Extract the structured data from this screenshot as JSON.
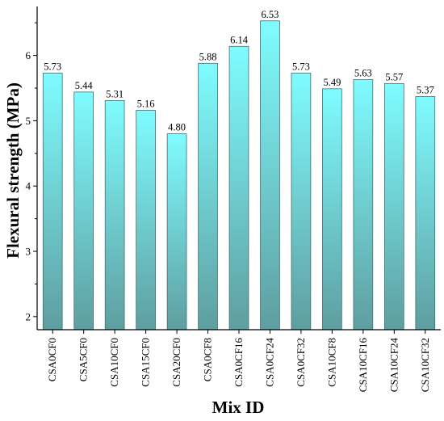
{
  "chart_data": {
    "type": "bar",
    "title": "",
    "xlabel": "Mix ID",
    "ylabel": "Flexural strength (MPa)",
    "ylim": [
      1.8,
      6.75
    ],
    "yticks": [
      2,
      3,
      4,
      5,
      6
    ],
    "grid": false,
    "categories": [
      "CSA0CF0",
      "CSA5CF0",
      "CSA10CF0",
      "CSA15CF0",
      "CSA20CF0",
      "CSA0CF8",
      "CSA0CF16",
      "CSA0CF24",
      "CSA0CF32",
      "CSA10CF8",
      "CSA10CF16",
      "CSA10CF24",
      "CSA10CF32"
    ],
    "values": [
      5.73,
      5.44,
      5.31,
      5.16,
      4.8,
      5.88,
      6.14,
      6.53,
      5.73,
      5.49,
      5.63,
      5.57,
      5.37
    ],
    "value_labels": [
      "5.73",
      "5.44",
      "5.31",
      "5.16",
      "4.80",
      "5.88",
      "6.14",
      "6.53",
      "5.73",
      "5.49",
      "5.63",
      "5.57",
      "5.37"
    ],
    "colors": {
      "bar_top": "#7ffcff",
      "bar_bottom": "#5f9ea0",
      "bar_stroke": "#3f6f6f",
      "axis": "#000000"
    }
  }
}
